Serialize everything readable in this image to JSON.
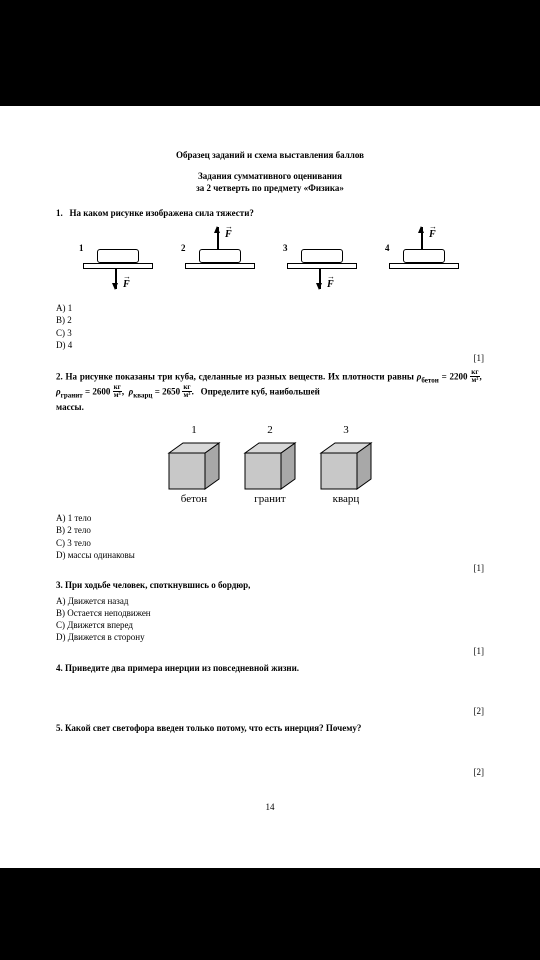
{
  "header": {
    "main_title": "Образец заданий и схема выставления баллов",
    "sub_title_1": "Задания суммативного оценивания",
    "sub_title_2": "за 2 четверть по предмету «Физика»"
  },
  "q1": {
    "number": "1.",
    "text": "На каком рисунке изображена сила тяжести?",
    "figures": [
      {
        "num": "1",
        "dir": "down",
        "fpos": "bottom"
      },
      {
        "num": "2",
        "dir": "up",
        "fpos": "top"
      },
      {
        "num": "3",
        "dir": "down",
        "fpos": "bottom"
      },
      {
        "num": "4",
        "dir": "up",
        "fpos": "top"
      }
    ],
    "force_label": "F",
    "options": {
      "a": "A)   1",
      "b": "B)   2",
      "c": "C)   3",
      "d": "D)   4"
    },
    "score": "[1]"
  },
  "q2": {
    "prefix": "2. На рисунке показаны три куба, сделанные из разных веществ. Их плотности равны",
    "rho1_name": "бетон",
    "rho1_val": "2200",
    "rho2_name": "гранит",
    "rho2_val": "2600",
    "rho3_name": "кварц",
    "rho3_val": "2650",
    "unit_num": "кг",
    "unit_den": "м³",
    "tail": "Определите   куб,   наибольшей",
    "line2": "массы.",
    "cubes": [
      {
        "num": "1",
        "label": "бетон"
      },
      {
        "num": "2",
        "label": "гранит"
      },
      {
        "num": "3",
        "label": "кварц"
      }
    ],
    "cube_fill_light": "#c8c8c8",
    "cube_fill_dark": "#a8a8a8",
    "cube_fill_top": "#d8d8d8",
    "options": {
      "a": "A) 1 тело",
      "b": "B) 2 тело",
      "c": "C) 3 тело",
      "d": "D) массы одинаковы"
    },
    "score": "[1]"
  },
  "q3": {
    "text": "3. При ходьбе человек, споткнувшись о бордюр,",
    "options": {
      "a": "A) Движется назад",
      "b": "B) Остается неподвижен",
      "c": "C) Движется вперед",
      "d": "D) Движется в сторону"
    },
    "score": "[1]"
  },
  "q4": {
    "text": "4. Приведите два примера инерции из повседневной жизни.",
    "score": "[2]"
  },
  "q5": {
    "text": "5. Какой свет светофора введен только потому, что есть инерция? Почему?",
    "score": "[2]"
  },
  "page_number": "14"
}
